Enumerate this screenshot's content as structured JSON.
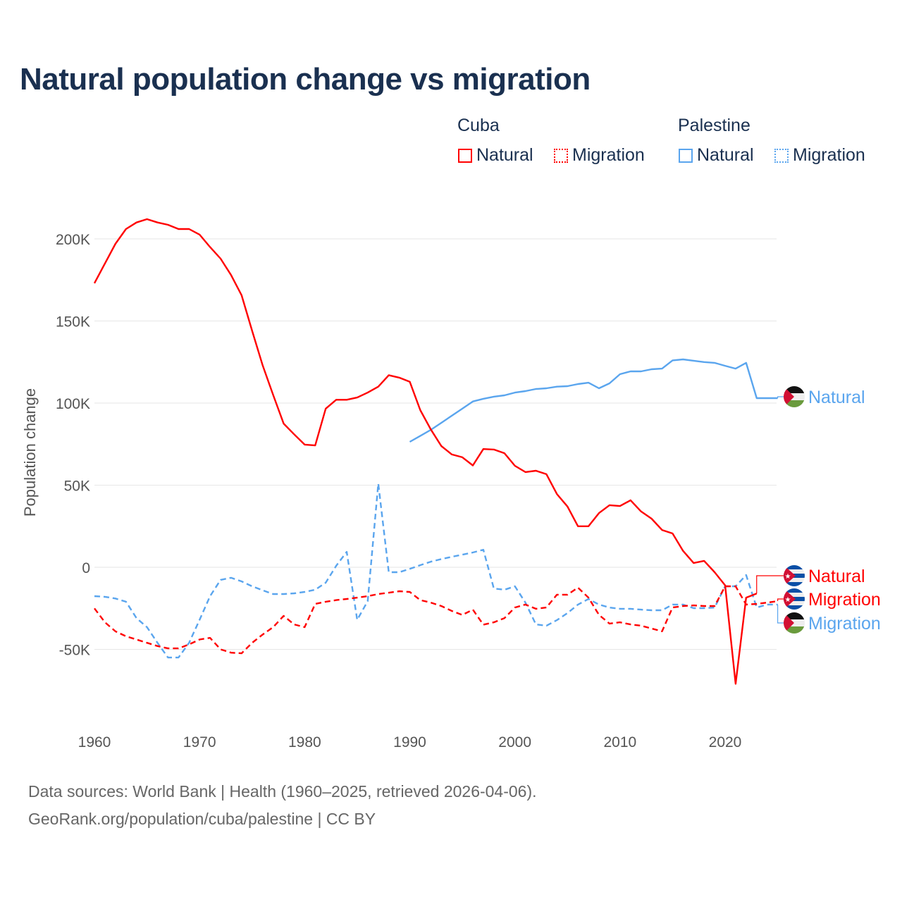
{
  "title": "Natural population change vs migration",
  "legend": {
    "groups": [
      {
        "name": "Cuba",
        "items": [
          "Natural",
          "Migration"
        ],
        "color": "#ff0000"
      },
      {
        "name": "Palestine",
        "items": [
          "Natural",
          "Migration"
        ],
        "color": "#5aa5ee"
      }
    ]
  },
  "footer": {
    "line1": "Data sources: World Bank | Health (1960–2025, retrieved 2026-04-06).",
    "line2": "GeoRank.org/population/cuba/palestine | CC BY"
  },
  "chart_data": {
    "type": "line",
    "title": "Natural population change vs migration",
    "xlabel": "",
    "ylabel": "Population change",
    "xlim": [
      1960,
      2025
    ],
    "ylim": [
      -85000,
      225000
    ],
    "x_ticks": [
      1960,
      1970,
      1980,
      1990,
      2000,
      2010,
      2020
    ],
    "x_tick_labels": [
      "1960",
      "1970",
      "1980",
      "1990",
      "2000",
      "2010",
      "2020"
    ],
    "y_ticks": [
      -50000,
      0,
      50000,
      100000,
      150000,
      200000
    ],
    "y_tick_labels": [
      "-50K",
      "0",
      "50K",
      "100K",
      "150K",
      "200K"
    ],
    "grid": true,
    "legend_position": "top-right",
    "series": [
      {
        "name": "Cuba Natural",
        "label": "Natural",
        "country": "Cuba",
        "color": "#ff0000",
        "dash": "solid",
        "start": 1960,
        "values": [
          173000,
          185000,
          197000,
          206000,
          210000,
          212000,
          210000,
          208600,
          206000,
          206000,
          202600,
          195000,
          188000,
          178000,
          165700,
          144000,
          123000,
          105000,
          87500,
          81000,
          74700,
          74200,
          96600,
          102000,
          102000,
          103400,
          106400,
          110000,
          117000,
          115500,
          113000,
          95700,
          84000,
          73800,
          68700,
          67000,
          62000,
          72000,
          71700,
          69500,
          61800,
          58000,
          58800,
          56700,
          44600,
          37000,
          25000,
          25000,
          33000,
          37800,
          37300,
          40800,
          34000,
          29600,
          22700,
          20600,
          10000,
          2600,
          3900,
          -3000,
          -11000,
          -71000,
          -18500,
          -16000
        ]
      },
      {
        "name": "Cuba Migration",
        "label": "Migration",
        "country": "Cuba",
        "color": "#ff0000",
        "dash": "dashed",
        "start": 1960,
        "values": [
          -25000,
          -33500,
          -39000,
          -42000,
          -44000,
          -46000,
          -48000,
          -49400,
          -49400,
          -47000,
          -44000,
          -43000,
          -50000,
          -52000,
          -52400,
          -46000,
          -41000,
          -36500,
          -29600,
          -34800,
          -36500,
          -22300,
          -21000,
          -20000,
          -19300,
          -18500,
          -17600,
          -16300,
          -15500,
          -14600,
          -15000,
          -20000,
          -21500,
          -23600,
          -26600,
          -29000,
          -25800,
          -35000,
          -33500,
          -31000,
          -24500,
          -22700,
          -25300,
          -24500,
          -16700,
          -16700,
          -12400,
          -18500,
          -29000,
          -34300,
          -33500,
          -34800,
          -35600,
          -37300,
          -39000,
          -24500,
          -23600,
          -23200,
          -23600,
          -23600,
          -11600,
          -11600,
          -22700,
          -22300,
          -21500,
          -20600
        ]
      },
      {
        "name": "Palestine Natural",
        "label": "Natural",
        "country": "Palestine",
        "color": "#5aa5ee",
        "dash": "solid",
        "start": 1990,
        "values": [
          76400,
          80000,
          83700,
          88000,
          92300,
          96600,
          101000,
          102600,
          103900,
          104700,
          106400,
          107300,
          108600,
          109000,
          110000,
          110300,
          111600,
          112400,
          109000,
          112000,
          117600,
          119300,
          119300,
          120600,
          121000,
          126000,
          126600,
          125800,
          125000,
          124500,
          122700,
          121000,
          124500,
          103000,
          103000,
          103000
        ]
      },
      {
        "name": "Palestine Migration",
        "label": "Migration",
        "country": "Palestine",
        "color": "#5aa5ee",
        "dash": "dashed",
        "start": 1960,
        "values": [
          -17600,
          -18000,
          -19000,
          -21000,
          -31000,
          -36500,
          -46000,
          -55000,
          -55000,
          -46000,
          -32000,
          -17600,
          -7700,
          -6400,
          -8600,
          -11600,
          -14000,
          -16300,
          -16300,
          -15900,
          -15000,
          -13700,
          -9400,
          900,
          9400,
          -32000,
          -20600,
          51000,
          -3000,
          -3000,
          -1000,
          1300,
          3400,
          5000,
          6400,
          7700,
          9000,
          10700,
          -12900,
          -13700,
          -11600,
          -21500,
          -34800,
          -35600,
          -32200,
          -27900,
          -22700,
          -19300,
          -22700,
          -24500,
          -25300,
          -25300,
          -25800,
          -26200,
          -26200,
          -22700,
          -22700,
          -24900,
          -24900,
          -24500,
          -11600,
          -11600,
          -4700,
          -24500,
          -22700,
          -22700
        ]
      }
    ]
  }
}
